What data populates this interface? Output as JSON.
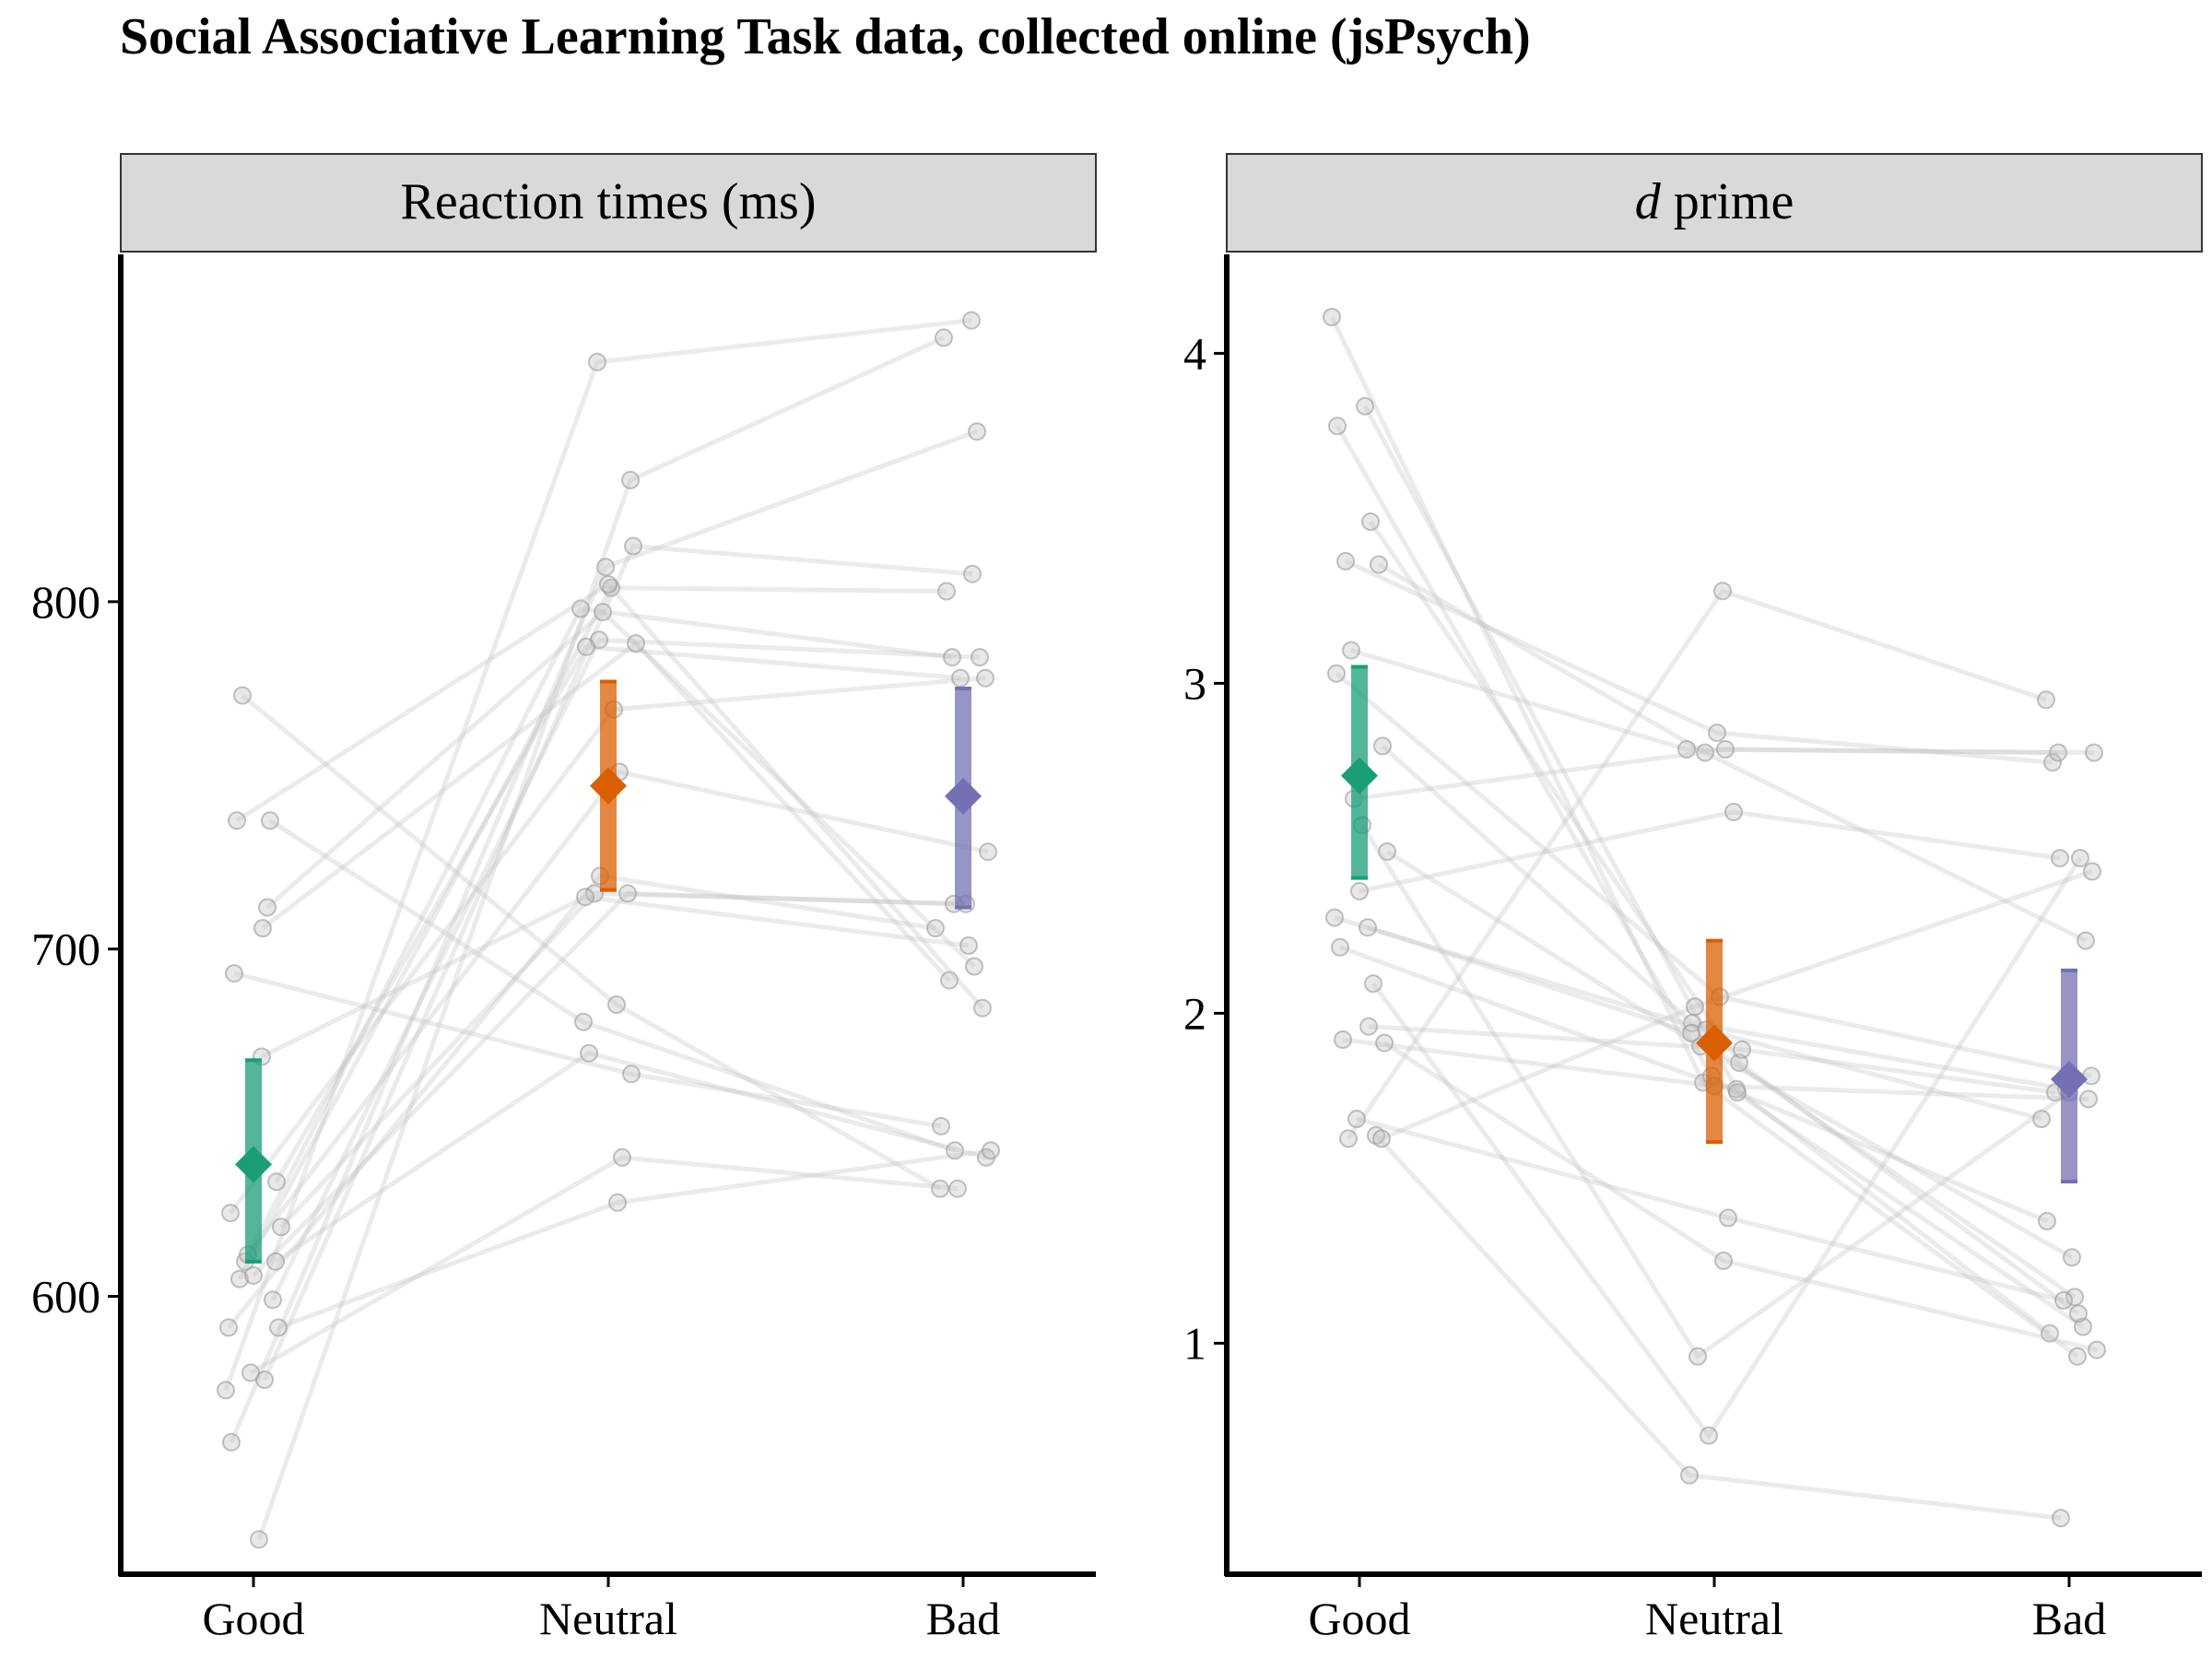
{
  "title": "Social Associative Learning Task data, collected online (jsPsych)",
  "colors": {
    "good": "#1b9e77",
    "neutral": "#d95f02",
    "bad": "#7570b3",
    "subject_points": "#bdbdbd",
    "strip_fill": "#d9d9d9"
  },
  "chart_data": [
    {
      "type": "scatter",
      "panel_title": "Reaction times (ms)",
      "categories": [
        "Good",
        "Neutral",
        "Bad"
      ],
      "yticks": [
        600,
        700,
        800
      ],
      "ylim": [
        520,
        900
      ],
      "subjects": [
        [
          573,
          869,
          881
        ],
        [
          530,
          835,
          876
        ],
        [
          558,
          810,
          849
        ],
        [
          576,
          816,
          808
        ],
        [
          605,
          804,
          803
        ],
        [
          599,
          789,
          784
        ],
        [
          610,
          798,
          784
        ],
        [
          624,
          769,
          778
        ],
        [
          633,
          787,
          778
        ],
        [
          612,
          751,
          728
        ],
        [
          620,
          716,
          713
        ],
        [
          606,
          716,
          713
        ],
        [
          591,
          721,
          706
        ],
        [
          669,
          715,
          701
        ],
        [
          693,
          664,
          649
        ],
        [
          712,
          797,
          695
        ],
        [
          706,
          788,
          691
        ],
        [
          737,
          805,
          683
        ],
        [
          737,
          679,
          642
        ],
        [
          773,
          684,
          631
        ],
        [
          610,
          670,
          640
        ],
        [
          578,
          640,
          631
        ],
        [
          591,
          627,
          642
        ]
      ],
      "summary": [
        {
          "category": "Good",
          "mean": 638,
          "ci": [
            610,
            668
          ],
          "color": "#1b9e77"
        },
        {
          "category": "Neutral",
          "mean": 747,
          "ci": [
            717,
            777
          ],
          "color": "#d95f02"
        },
        {
          "category": "Bad",
          "mean": 744,
          "ci": [
            712,
            775
          ],
          "color": "#7570b3"
        }
      ]
    },
    {
      "type": "scatter",
      "panel_title": "d prime",
      "panel_title_italic": "d",
      "panel_title_rest": " prime",
      "categories": [
        "Good",
        "Neutral",
        "Bad"
      ],
      "yticks": [
        1,
        2,
        3,
        4
      ],
      "ylim": [
        0.3,
        4.3
      ],
      "subjects": [
        [
          4.11,
          1.79,
          0.96
        ],
        [
          3.84,
          1.77,
          1.03
        ],
        [
          3.78,
          1.81,
          1.05
        ],
        [
          3.49,
          1.85,
          1.09
        ],
        [
          3.37,
          2.85,
          2.76
        ],
        [
          3.36,
          2.79,
          2.22
        ],
        [
          3.1,
          2.8,
          2.79
        ],
        [
          3.03,
          2.05,
          1.81
        ],
        [
          2.81,
          1.97,
          1.77
        ],
        [
          2.65,
          2.8,
          2.79
        ],
        [
          2.49,
          1.9,
          1.26
        ],
        [
          2.37,
          2.61,
          2.47
        ],
        [
          2.29,
          1.95,
          1.68
        ],
        [
          2.26,
          1.94,
          1.14
        ],
        [
          2.2,
          1.76,
          1.37
        ],
        [
          2.09,
          0.72,
          2.47
        ],
        [
          1.96,
          1.89,
          1.76
        ],
        [
          1.92,
          1.78,
          1.74
        ],
        [
          1.63,
          0.6,
          0.47
        ],
        [
          1.62,
          3.28,
          2.95
        ],
        [
          1.62,
          2.02,
          2.43
        ],
        [
          1.68,
          1.38,
          1.13
        ],
        [
          1.91,
          1.25,
          0.98
        ],
        [
          2.57,
          0.96,
          1.76
        ]
      ],
      "summary": [
        {
          "category": "Good",
          "mean": 2.72,
          "ci": [
            2.41,
            3.05
          ],
          "color": "#1b9e77"
        },
        {
          "category": "Neutral",
          "mean": 1.91,
          "ci": [
            1.61,
            2.22
          ],
          "color": "#d95f02"
        },
        {
          "category": "Bad",
          "mean": 1.8,
          "ci": [
            1.49,
            2.13
          ],
          "color": "#7570b3"
        }
      ]
    }
  ]
}
